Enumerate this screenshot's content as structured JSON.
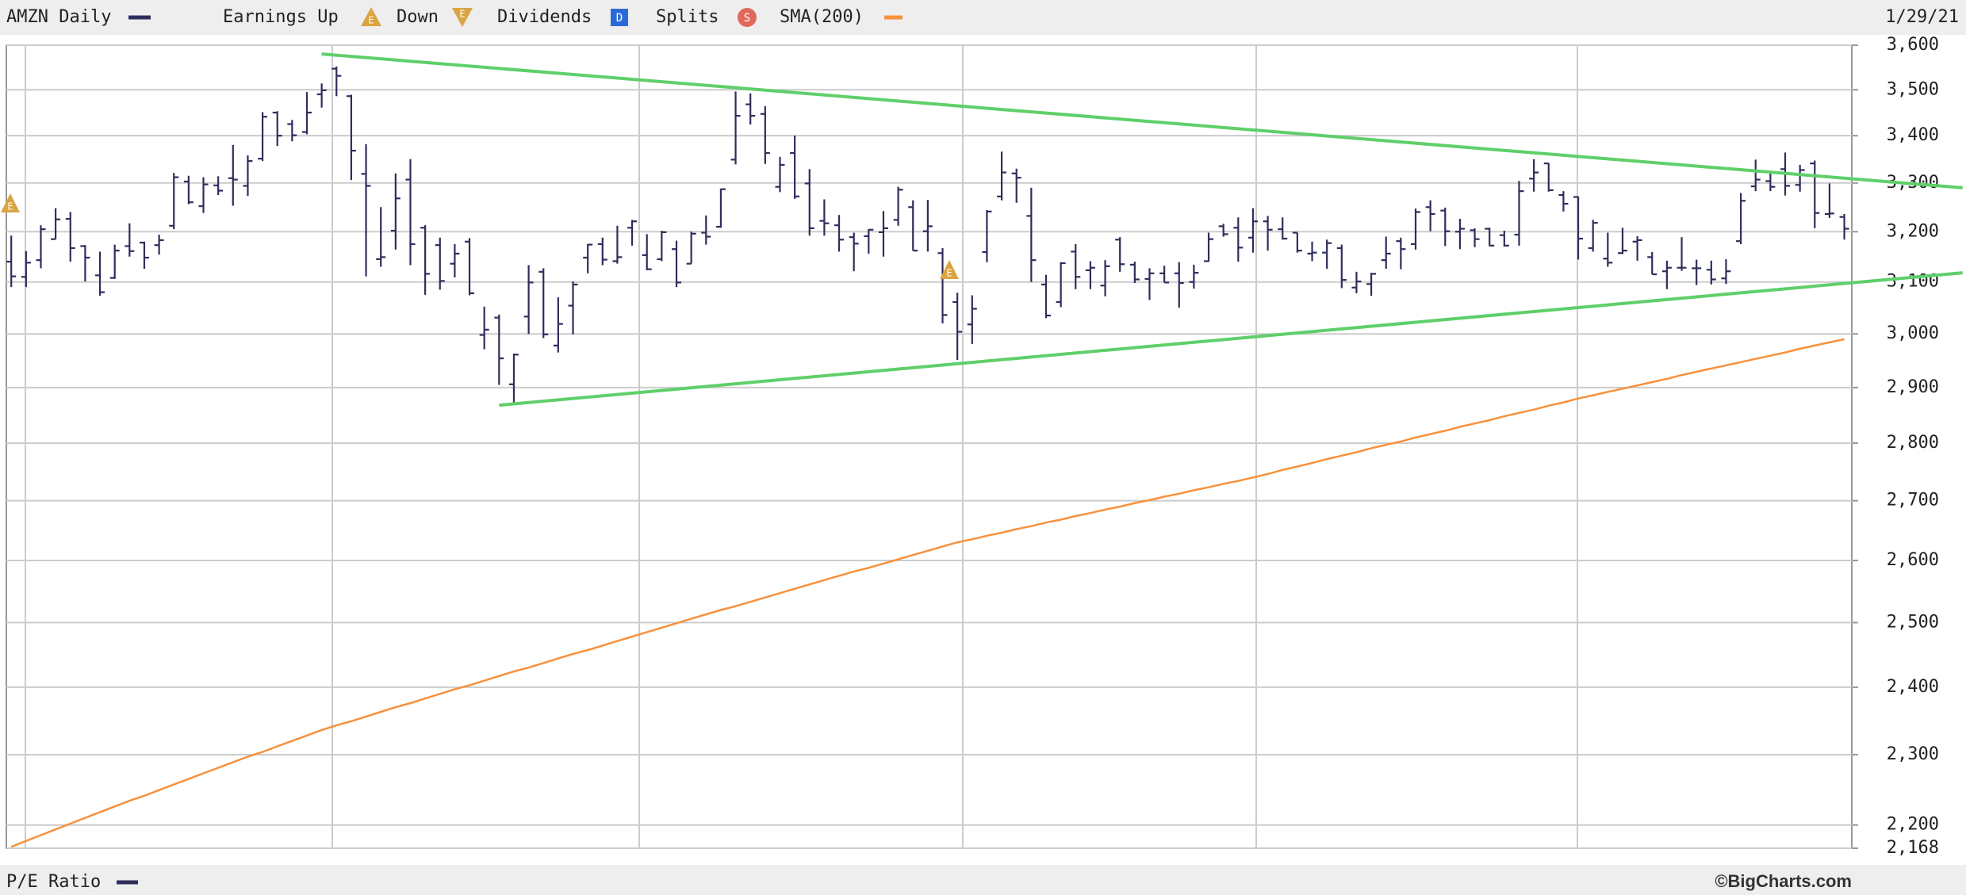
{
  "chart_data": {
    "type": "ohlc",
    "date_label": "1/29/21",
    "legend": {
      "earnings_up": "Earnings Up",
      "earnings_down": "Down",
      "dividends": "Dividends",
      "splits": "Splits",
      "earnings_icon": "E",
      "dividends_icon": "D",
      "splits_icon": "S"
    },
    "lower_panel_title": "P/E Ratio",
    "lower_panel_color": "#2e2e5c",
    "source": "©BigCharts.com",
    "log_scale": true,
    "grid": true,
    "ylim": [
      2168,
      3600
    ],
    "yticks": [
      {
        "value": 2168,
        "label": "2,168"
      },
      {
        "value": 2200,
        "label": "2,200"
      },
      {
        "value": 2300,
        "label": "2,300"
      },
      {
        "value": 2400,
        "label": "2,400"
      },
      {
        "value": 2500,
        "label": "2,500"
      },
      {
        "value": 2600,
        "label": "2,600"
      },
      {
        "value": 2700,
        "label": "2,700"
      },
      {
        "value": 2800,
        "label": "2,800"
      },
      {
        "value": 2900,
        "label": "2,900"
      },
      {
        "value": 3000,
        "label": "3,000"
      },
      {
        "value": 3100,
        "label": "3,100"
      },
      {
        "value": 3200,
        "label": "3,200"
      },
      {
        "value": 3300,
        "label": "3,300"
      },
      {
        "value": 3400,
        "label": "3,400"
      },
      {
        "value": 3500,
        "label": "3,500"
      },
      {
        "value": 3600,
        "label": "3,600"
      }
    ],
    "series": [
      {
        "name": "AMZN Daily",
        "color": "#2e2e5c",
        "open": [
          3140,
          3110,
          3143,
          3185,
          3226,
          3171,
          3113,
          3108,
          3171,
          3178,
          3173,
          3212,
          3303,
          3252,
          3295,
          3310,
          3294,
          3351,
          3450,
          3425,
          3408,
          3490,
          3547,
          3486,
          3319,
          3145,
          3202,
          3307,
          3208,
          3173,
          3136,
          3180,
          2998,
          3031,
          2906,
          3033,
          3120,
          2978,
          3054,
          3148,
          3175,
          3141,
          3208,
          3153,
          3145,
          3165,
          3136,
          3198,
          3210,
          3349,
          3468,
          3447,
          3292,
          3363,
          3299,
          3222,
          3213,
          3189,
          3191,
          3199,
          3224,
          3250,
          3201,
          3157,
          3061,
          3018,
          3159,
          3272,
          3320,
          3232,
          3095,
          3061,
          3160,
          3123,
          3093,
          3184,
          3134,
          3106,
          3117,
          3117,
          3100,
          3141,
          3211,
          3208,
          3188,
          3221,
          3205,
          3198,
          3156,
          3158,
          3167,
          3089,
          3096,
          3143,
          3181,
          3175,
          3250,
          3243,
          3200,
          3203,
          3206,
          3193,
          3194,
          3309,
          3341,
          3275,
          3271,
          3167,
          3146,
          3157,
          3180,
          3149,
          3121,
          3128,
          3127,
          3124,
          3107,
          3181,
          3293,
          3304,
          3329,
          3296,
          3341,
          3236,
          3230
        ],
        "high": [
          3192,
          3161,
          3213,
          3248,
          3240,
          3173,
          3160,
          3174,
          3217,
          3180,
          3194,
          3321,
          3315,
          3312,
          3314,
          3380,
          3358,
          3451,
          3453,
          3434,
          3495,
          3514,
          3552,
          3489,
          3382,
          3250,
          3320,
          3350,
          3213,
          3188,
          3175,
          3187,
          3052,
          3037,
          2963,
          3133,
          3127,
          3070,
          3101,
          3175,
          3188,
          3212,
          3224,
          3195,
          3202,
          3182,
          3200,
          3233,
          3288,
          3496,
          3492,
          3464,
          3355,
          3400,
          3329,
          3266,
          3234,
          3198,
          3205,
          3242,
          3292,
          3264,
          3265,
          3167,
          3079,
          3074,
          3244,
          3366,
          3330,
          3290,
          3114,
          3139,
          3175,
          3141,
          3143,
          3189,
          3140,
          3127,
          3132,
          3139,
          3134,
          3198,
          3216,
          3229,
          3248,
          3232,
          3229,
          3198,
          3180,
          3184,
          3174,
          3120,
          3118,
          3190,
          3188,
          3247,
          3264,
          3249,
          3226,
          3207,
          3208,
          3202,
          3304,
          3350,
          3342,
          3283,
          3272,
          3224,
          3198,
          3208,
          3191,
          3159,
          3142,
          3189,
          3144,
          3142,
          3145,
          3279,
          3349,
          3321,
          3364,
          3338,
          3347,
          3299,
          3236
        ],
        "low": [
          3090,
          3090,
          3127,
          3185,
          3140,
          3101,
          3073,
          3106,
          3150,
          3126,
          3154,
          3205,
          3256,
          3238,
          3275,
          3253,
          3273,
          3346,
          3378,
          3388,
          3403,
          3461,
          3486,
          3306,
          3111,
          3130,
          3164,
          3133,
          3075,
          3085,
          3109,
          3074,
          2971,
          2905,
          2871,
          3000,
          2992,
          2965,
          2999,
          3117,
          3133,
          3136,
          3172,
          3123,
          3141,
          3090,
          3136,
          3174,
          3208,
          3339,
          3424,
          3340,
          3281,
          3267,
          3192,
          3192,
          3160,
          3121,
          3156,
          3150,
          3212,
          3162,
          3160,
          3020,
          2951,
          2981,
          3139,
          3264,
          3259,
          3100,
          3030,
          3051,
          3086,
          3086,
          3072,
          3120,
          3098,
          3065,
          3099,
          3050,
          3087,
          3140,
          3190,
          3140,
          3158,
          3162,
          3184,
          3158,
          3141,
          3126,
          3088,
          3078,
          3073,
          3126,
          3125,
          3164,
          3201,
          3171,
          3165,
          3169,
          3171,
          3170,
          3172,
          3282,
          3282,
          3241,
          3144,
          3160,
          3130,
          3155,
          3142,
          3115,
          3086,
          3122,
          3094,
          3095,
          3096,
          3175,
          3283,
          3283,
          3274,
          3282,
          3207,
          3228,
          3184
        ],
        "close": [
          3111,
          3138,
          3205,
          3225,
          3167,
          3148,
          3080,
          3162,
          3161,
          3148,
          3183,
          3312,
          3260,
          3297,
          3284,
          3307,
          3346,
          3441,
          3400,
          3401,
          3450,
          3499,
          3531,
          3368,
          3294,
          3149,
          3268,
          3175,
          3116,
          3102,
          3156,
          3078,
          3008,
          2954,
          2961,
          3099,
          2999,
          3019,
          3095,
          3174,
          3144,
          3149,
          3221,
          3125,
          3199,
          3099,
          3196,
          3190,
          3287,
          3443,
          3443,
          3363,
          3338,
          3272,
          3207,
          3217,
          3184,
          3176,
          3204,
          3207,
          3286,
          3162,
          3211,
          3036,
          3004,
          3048,
          3241,
          3322,
          3311,
          3143,
          3035,
          3137,
          3110,
          3128,
          3131,
          3135,
          3105,
          3117,
          3099,
          3098,
          3118,
          3185,
          3195,
          3168,
          3221,
          3204,
          3186,
          3162,
          3158,
          3177,
          3104,
          3101,
          3116,
          3156,
          3165,
          3240,
          3236,
          3201,
          3206,
          3185,
          3172,
          3172,
          3283,
          3322,
          3285,
          3257,
          3186,
          3218,
          3138,
          3162,
          3183,
          3115,
          3128,
          3128,
          3127,
          3105,
          3121,
          3263,
          3307,
          3292,
          3294,
          3327,
          3238,
          3237,
          3206
        ]
      },
      {
        "name": "SMA(200)",
        "type": "line",
        "color": "#f7913d",
        "values": [
          2170,
          2178,
          2186,
          2194,
          2202,
          2210,
          2218,
          2226,
          2234,
          2241,
          2249,
          2257,
          2265,
          2273,
          2281,
          2289,
          2297,
          2304,
          2312,
          2320,
          2328,
          2336,
          2343,
          2349,
          2356,
          2363,
          2370,
          2376,
          2383,
          2390,
          2397,
          2403,
          2410,
          2417,
          2424,
          2430,
          2437,
          2444,
          2451,
          2457,
          2464,
          2471,
          2478,
          2485,
          2492,
          2499,
          2506,
          2513,
          2520,
          2526,
          2533,
          2540,
          2547,
          2554,
          2561,
          2568,
          2575,
          2582,
          2588,
          2595,
          2602,
          2609,
          2616,
          2623,
          2630,
          2635,
          2641,
          2646,
          2652,
          2657,
          2663,
          2668,
          2674,
          2679,
          2685,
          2690,
          2696,
          2701,
          2707,
          2712,
          2718,
          2723,
          2729,
          2734,
          2740,
          2746,
          2753,
          2759,
          2765,
          2772,
          2778,
          2784,
          2791,
          2797,
          2803,
          2810,
          2816,
          2822,
          2829,
          2835,
          2841,
          2848,
          2854,
          2860,
          2867,
          2873,
          2880,
          2886,
          2892,
          2898,
          2904,
          2910,
          2916,
          2923,
          2929,
          2935,
          2941,
          2947,
          2953,
          2959,
          2965,
          2972,
          2978,
          2984,
          2990
        ]
      }
    ],
    "trend_lines": [
      {
        "color": "#5fcf6a",
        "x": [
          21,
          132
        ],
        "values": [
          3580,
          3290
        ]
      },
      {
        "color": "#5fcf6a",
        "x": [
          33,
          132
        ],
        "values": [
          2868,
          3118
        ]
      }
    ]
  }
}
